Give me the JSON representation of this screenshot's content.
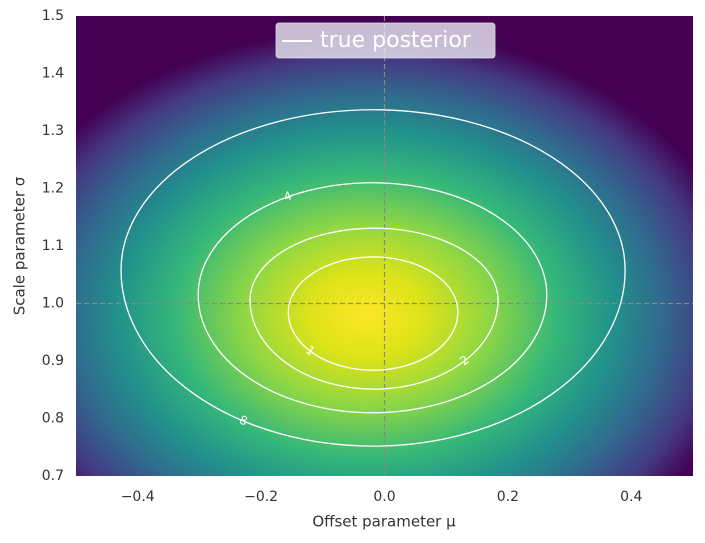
{
  "chart_data": {
    "type": "contour",
    "xlabel": "Offset parameter μ",
    "ylabel": "Scale parameter σ",
    "xlim": [
      -0.5,
      0.5
    ],
    "ylim": [
      0.7,
      1.5
    ],
    "xticks": [
      {
        "value": -0.4,
        "label": "−0.4"
      },
      {
        "value": -0.2,
        "label": "−0.2"
      },
      {
        "value": 0,
        "label": "0.0"
      },
      0.2,
      0.4
    ],
    "yticks": [
      0.7,
      0.8,
      0.9,
      {
        "value": 1,
        "label": "1.0"
      },
      1.1,
      1.2,
      1.3,
      1.4,
      1.5
    ],
    "reference_lines": {
      "x": 0,
      "y": 1
    },
    "line_color": "#ffffff",
    "legend": {
      "label": "true posterior",
      "loc": "upper center"
    },
    "contours": [
      {
        "level": 1,
        "x_range": [
          -0.156,
          0.119
        ],
        "y_range": [
          0.884,
          1.081
        ],
        "y_widest": 0.985
      },
      {
        "level": 2,
        "x_range": [
          -0.218,
          0.184
        ],
        "y_range": [
          0.851,
          1.131
        ],
        "y_widest": 1.006
      },
      {
        "level": 4,
        "x_range": [
          -0.302,
          0.263
        ],
        "y_range": [
          0.81,
          1.21
        ],
        "y_widest": 1.015
      },
      {
        "level": 8,
        "x_range": [
          -0.427,
          0.39
        ],
        "y_range": [
          0.752,
          1.337
        ],
        "y_widest": 1.058
      }
    ]
  }
}
